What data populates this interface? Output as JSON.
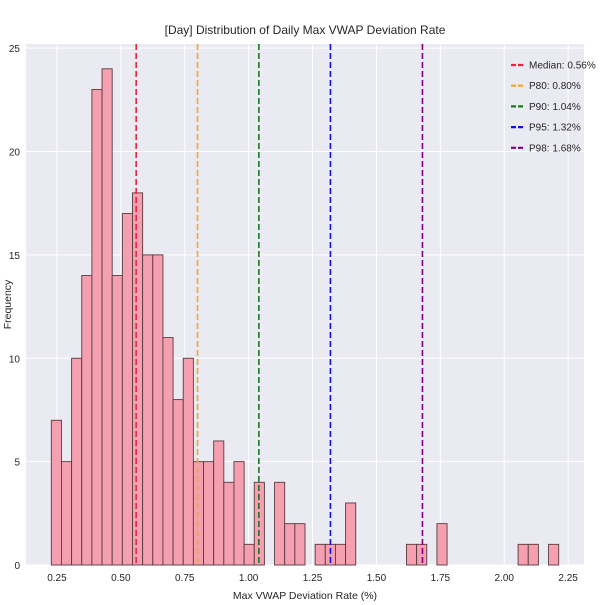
{
  "chart_data": {
    "type": "bar",
    "subtype": "histogram",
    "title": "[Day] Distribution of Daily Max VWAP Deviation Rate",
    "xlabel": "Max VWAP Deviation Rate (%)",
    "ylabel": "Frequency",
    "xlim": [
      0.129,
      2.312
    ],
    "ylim": [
      0,
      25.2
    ],
    "xticks": [
      0.25,
      0.5,
      0.75,
      1.0,
      1.25,
      1.5,
      1.75,
      2.0,
      2.25
    ],
    "xtick_labels": [
      "0.25",
      "0.50",
      "0.75",
      "1.00",
      "1.25",
      "1.50",
      "1.75",
      "2.00",
      "2.25"
    ],
    "yticks": [
      0,
      5,
      10,
      15,
      20,
      25
    ],
    "ytick_labels": [
      "0",
      "5",
      "10",
      "15",
      "20",
      "25"
    ],
    "grid": true,
    "bin_start": 0.228,
    "bin_width": 0.0397,
    "counts": [
      7,
      5,
      10,
      14,
      23,
      24,
      14,
      17,
      18,
      15,
      15,
      11,
      8,
      10,
      5,
      5,
      6,
      4,
      5,
      1,
      4,
      0,
      4,
      2,
      2,
      0,
      1,
      1,
      1,
      3,
      0,
      0,
      0,
      0,
      0,
      1,
      1,
      0,
      2,
      0,
      0,
      0,
      0,
      0,
      0,
      0,
      1,
      1,
      0,
      1
    ],
    "bar_color": "#f4a0b0",
    "bar_edge_color": "#5a3a40",
    "reference_lines": [
      {
        "label": "Median: 0.56%",
        "x": 0.56,
        "color": "#e8233a"
      },
      {
        "label": "P80: 0.80%",
        "x": 0.8,
        "color": "#f5a623"
      },
      {
        "label": "P90: 1.04%",
        "x": 1.04,
        "color": "#1a7a1a"
      },
      {
        "label": "P95: 1.32%",
        "x": 1.32,
        "color": "#1010e0"
      },
      {
        "label": "P98: 1.68%",
        "x": 1.68,
        "color": "#800080"
      }
    ],
    "legend_position": "top-right",
    "background_color": "#eaeaf2"
  }
}
